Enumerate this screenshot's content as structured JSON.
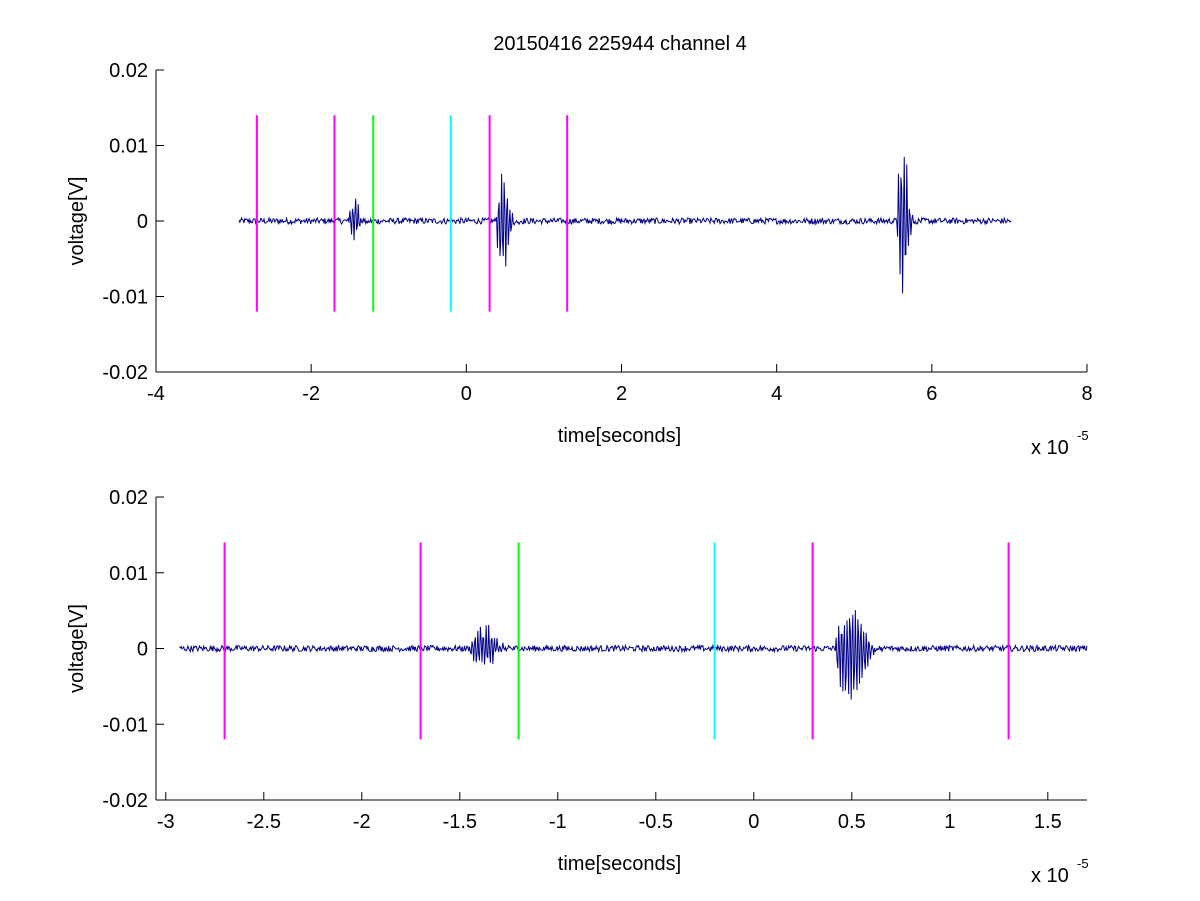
{
  "figure": {
    "title": "20150416 225944 channel 4",
    "colors": {
      "background": "#ffffff",
      "axes": "#000000",
      "signal": "#00008b",
      "magenta": "#ff00ff",
      "green": "#00ff00",
      "cyan": "#00ffff"
    }
  },
  "chart_data": [
    {
      "type": "line",
      "title": "20150416 225944 channel 4",
      "xlabel": "time[seconds]",
      "ylabel": "voltage[V]",
      "x_exponent_label": {
        "base": "x 10",
        "exp": "-5"
      },
      "xlim": [
        -4,
        8
      ],
      "ylim": [
        -0.02,
        0.02
      ],
      "xticks": [
        -4,
        -2,
        0,
        2,
        4,
        6,
        8
      ],
      "xtick_labels": [
        "-4",
        "-2",
        "0",
        "2",
        "4",
        "6",
        "8"
      ],
      "yticks": [
        -0.02,
        -0.01,
        0,
        0.01,
        0.02
      ],
      "ytick_labels": [
        "-0.02",
        "-0.01",
        "0",
        "0.01",
        "0.02"
      ],
      "grid": false,
      "series": [
        {
          "color": "#00008b",
          "x_range": [
            -2.93,
            7.02
          ],
          "x_units_note": "x 10^-5 seconds",
          "baseline": 0,
          "noise_amplitude": 0.0004,
          "bursts": [
            {
              "x_start": -1.52,
              "x_end": -1.25,
              "peak_pos": 0.0038,
              "peak_neg": -0.0028
            },
            {
              "x_start": 0.38,
              "x_end": 0.7,
              "peak_pos": 0.007,
              "peak_neg": -0.01
            },
            {
              "x_start": 5.55,
              "x_end": 5.82,
              "peak_pos": 0.0127,
              "peak_neg": -0.011
            }
          ]
        }
      ],
      "markers": [
        {
          "x": -2.7,
          "color": "#ff00ff",
          "y_range": [
            -0.012,
            0.014
          ]
        },
        {
          "x": -1.7,
          "color": "#ff00ff",
          "y_range": [
            -0.012,
            0.014
          ]
        },
        {
          "x": -1.2,
          "color": "#00ff00",
          "y_range": [
            -0.012,
            0.014
          ]
        },
        {
          "x": -0.2,
          "color": "#00ffff",
          "y_range": [
            -0.012,
            0.014
          ]
        },
        {
          "x": 0.3,
          "color": "#ff00ff",
          "y_range": [
            -0.012,
            0.014
          ]
        },
        {
          "x": 1.3,
          "color": "#ff00ff",
          "y_range": [
            -0.012,
            0.014
          ]
        }
      ]
    },
    {
      "type": "line",
      "title": "",
      "xlabel": "time[seconds]",
      "ylabel": "voltage[V]",
      "x_exponent_label": {
        "base": "x 10",
        "exp": "-5"
      },
      "xlim": [
        -3.05,
        1.7
      ],
      "ylim": [
        -0.02,
        0.02
      ],
      "xticks": [
        -3,
        -2.5,
        -2,
        -1.5,
        -1,
        -0.5,
        0,
        0.5,
        1,
        1.5
      ],
      "xtick_labels": [
        "-3",
        "-2.5",
        "-2",
        "-1.5",
        "-1",
        "-0.5",
        "0",
        "0.5",
        "1",
        "1.5"
      ],
      "yticks": [
        -0.02,
        -0.01,
        0,
        0.01,
        0.02
      ],
      "ytick_labels": [
        "-0.02",
        "-0.01",
        "0",
        "0.01",
        "0.02"
      ],
      "grid": false,
      "series": [
        {
          "color": "#00008b",
          "x_range": [
            -2.93,
            1.7
          ],
          "x_units_note": "x 10^-5 seconds",
          "baseline": 0,
          "noise_amplitude": 0.0004,
          "bursts": [
            {
              "x_start": -1.45,
              "x_end": -1.2,
              "peak_pos": 0.0038,
              "peak_neg": -0.0028
            },
            {
              "x_start": 0.42,
              "x_end": 0.68,
              "peak_pos": 0.0068,
              "peak_neg": -0.01
            }
          ]
        }
      ],
      "markers": [
        {
          "x": -2.7,
          "color": "#ff00ff",
          "y_range": [
            -0.012,
            0.014
          ]
        },
        {
          "x": -1.7,
          "color": "#ff00ff",
          "y_range": [
            -0.012,
            0.014
          ]
        },
        {
          "x": -1.2,
          "color": "#00ff00",
          "y_range": [
            -0.012,
            0.014
          ]
        },
        {
          "x": -0.2,
          "color": "#00ffff",
          "y_range": [
            -0.012,
            0.014
          ]
        },
        {
          "x": 0.3,
          "color": "#ff00ff",
          "y_range": [
            -0.012,
            0.014
          ]
        },
        {
          "x": 1.3,
          "color": "#ff00ff",
          "y_range": [
            -0.012,
            0.014
          ]
        }
      ]
    }
  ]
}
